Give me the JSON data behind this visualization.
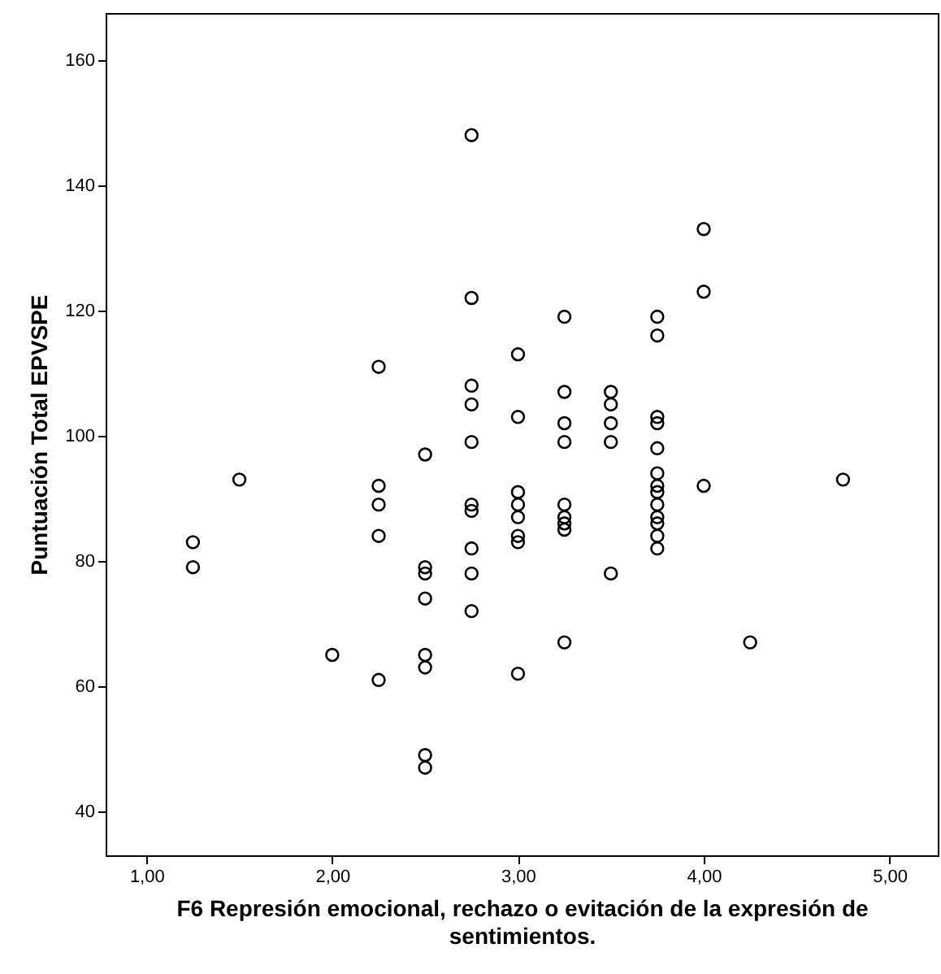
{
  "chart_data": {
    "type": "scatter",
    "xlabel": "F6 Represión emocional, rechazo o evitación de la expresión de sentimientos.",
    "ylabel": "Puntuación Total EPVSPE",
    "marker": "circle",
    "grid": false,
    "xlim": [
      0.78,
      5.26
    ],
    "ylim": [
      33,
      167.5
    ],
    "xticks": [
      {
        "value": 1,
        "label": "1,00"
      },
      {
        "value": 2,
        "label": "2,00"
      },
      {
        "value": 3,
        "label": "3,00"
      },
      {
        "value": 4,
        "label": "4,00"
      },
      {
        "value": 5,
        "label": "5,00"
      }
    ],
    "yticks": [
      40,
      60,
      80,
      100,
      120,
      140,
      160
    ],
    "series": [
      {
        "color": "#000000",
        "x": [
          1.25,
          1.25,
          1.5,
          2.0,
          2.25,
          2.25,
          2.25,
          2.25,
          2.25,
          2.5,
          2.5,
          2.5,
          2.5,
          2.5,
          2.5,
          2.5,
          2.5,
          2.75,
          2.75,
          2.75,
          2.75,
          2.75,
          2.75,
          2.75,
          2.75,
          2.75,
          2.75,
          3.0,
          3.0,
          3.0,
          3.0,
          3.0,
          3.0,
          3.0,
          3.0,
          3.25,
          3.25,
          3.25,
          3.25,
          3.25,
          3.25,
          3.25,
          3.25,
          3.25,
          3.5,
          3.5,
          3.5,
          3.5,
          3.5,
          3.75,
          3.75,
          3.75,
          3.75,
          3.75,
          3.75,
          3.75,
          3.75,
          3.75,
          3.75,
          3.75,
          3.75,
          3.75,
          4.0,
          4.0,
          4.0,
          4.25,
          4.75
        ],
        "values": [
          83,
          79,
          93,
          65,
          111,
          92,
          89,
          84,
          61,
          97,
          79,
          78,
          74,
          65,
          63,
          49,
          47,
          148,
          122,
          108,
          105,
          99,
          89,
          88,
          82,
          78,
          72,
          113,
          103,
          91,
          89,
          87,
          84,
          83,
          62,
          119,
          107,
          102,
          99,
          89,
          87,
          86,
          85,
          67,
          107,
          105,
          102,
          99,
          78,
          119,
          116,
          103,
          102,
          98,
          94,
          92,
          91,
          89,
          87,
          86,
          84,
          82,
          133,
          123,
          92,
          67,
          93
        ]
      }
    ]
  }
}
